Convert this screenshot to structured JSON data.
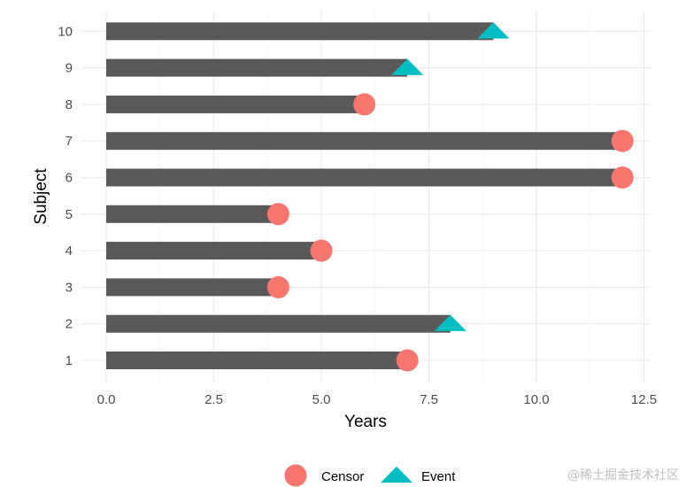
{
  "chart_data": {
    "type": "bar",
    "orientation": "horizontal",
    "xlabel": "Years",
    "ylabel": "Subject",
    "xlim": [
      0,
      12.5
    ],
    "x_ticks": [
      0.0,
      2.5,
      5.0,
      7.5,
      10.0,
      12.5
    ],
    "x_tick_labels": [
      "0.0",
      "2.5",
      "5.0",
      "7.5",
      "10.0",
      "12.5"
    ],
    "categories": [
      "1",
      "2",
      "3",
      "4",
      "5",
      "6",
      "7",
      "8",
      "9",
      "10"
    ],
    "values": [
      7,
      8,
      4,
      5,
      4,
      12,
      12,
      6,
      7,
      9
    ],
    "status": [
      "Censor",
      "Event",
      "Censor",
      "Censor",
      "Censor",
      "Censor",
      "Censor",
      "Censor",
      "Event",
      "Event"
    ],
    "bar_color": "#595959",
    "grid": true,
    "legend": {
      "position": "bottom",
      "items": [
        {
          "label": "Censor",
          "shape": "circle",
          "color": "#F8766D"
        },
        {
          "label": "Event",
          "shape": "triangle",
          "color": "#00BFC4"
        }
      ]
    }
  },
  "watermark": "@稀土掘金技术社区"
}
